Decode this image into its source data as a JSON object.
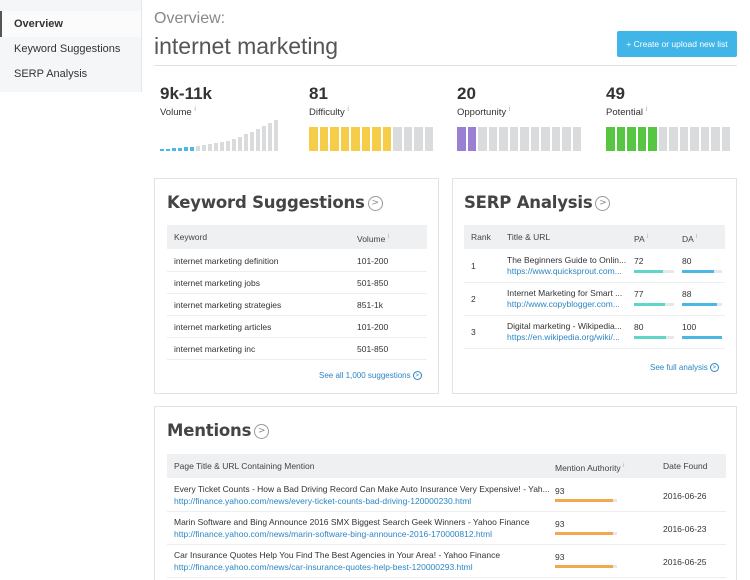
{
  "sidebar": {
    "items": [
      {
        "label": "Overview",
        "active": true
      },
      {
        "label": "Keyword Suggestions",
        "active": false
      },
      {
        "label": "SERP Analysis",
        "active": false
      }
    ]
  },
  "header": {
    "overview_label": "Overview:",
    "keyword": "internet marketing",
    "create_button": "+ Create or upload new list"
  },
  "metrics": [
    {
      "value": "9k-11k",
      "label": "Volume",
      "color": "#4cb6e6",
      "level": null
    },
    {
      "value": "81",
      "label": "Difficulty",
      "color": "#f6cc4b",
      "level": 8
    },
    {
      "value": "20",
      "label": "Opportunity",
      "color": "#9b7fd1",
      "level": 2
    },
    {
      "value": "49",
      "label": "Potential",
      "color": "#57c642",
      "level": 5
    }
  ],
  "volume_bars_on": 6,
  "info_mark": "i",
  "keyword_suggestions": {
    "title": "Keyword Suggestions",
    "col_keyword": "Keyword",
    "col_volume": "Volume",
    "rows": [
      {
        "keyword": "internet marketing definition",
        "volume": "101-200"
      },
      {
        "keyword": "internet marketing jobs",
        "volume": "501-850"
      },
      {
        "keyword": "internet marketing strategies",
        "volume": "851-1k"
      },
      {
        "keyword": "internet marketing articles",
        "volume": "101-200"
      },
      {
        "keyword": "internet marketing inc",
        "volume": "501-850"
      }
    ],
    "see_all": "See all 1,000 suggestions"
  },
  "serp_analysis": {
    "title": "SERP Analysis",
    "col_rank": "Rank",
    "col_title": "Title & URL",
    "col_pa": "PA",
    "col_da": "DA",
    "pa_color": "#5fd6c8",
    "da_color": "#4cb6e6",
    "rows": [
      {
        "rank": "1",
        "title": "The Beginners Guide to Onlin...",
        "url": "https://www.quicksprout.com...",
        "pa": "72",
        "da": "80"
      },
      {
        "rank": "2",
        "title": "Internet Marketing for Smart ...",
        "url": "http://www.copyblogger.com...",
        "pa": "77",
        "da": "88"
      },
      {
        "rank": "3",
        "title": "Digital marketing - Wikipedia...",
        "url": "https://en.wikipedia.org/wiki/...",
        "pa": "80",
        "da": "100"
      }
    ],
    "see_full": "See full analysis"
  },
  "mentions": {
    "title": "Mentions",
    "col_page": "Page Title & URL Containing Mention",
    "col_authority": "Mention Authority",
    "col_date": "Date Found",
    "authority_color": "#f3a94b",
    "rows": [
      {
        "title": "Every Ticket Counts - How a Bad Driving Record Can Make Auto Insurance Very Expensive! - Yah...",
        "url": "http://finance.yahoo.com/news/every-ticket-counts-bad-driving-120000230.html",
        "authority": "93",
        "date": "2016-06-26"
      },
      {
        "title": "Marin Software and Bing Announce 2016 SMX Biggest Search Geek Winners - Yahoo Finance",
        "url": "http://finance.yahoo.com/news/marin-software-bing-announce-2016-170000812.html",
        "authority": "93",
        "date": "2016-06-23"
      },
      {
        "title": "Car Insurance Quotes Help You Find The Best Agencies in Your Area! - Yahoo Finance",
        "url": "http://finance.yahoo.com/news/car-insurance-quotes-help-best-120000293.html",
        "authority": "93",
        "date": "2016-06-25"
      }
    ]
  }
}
